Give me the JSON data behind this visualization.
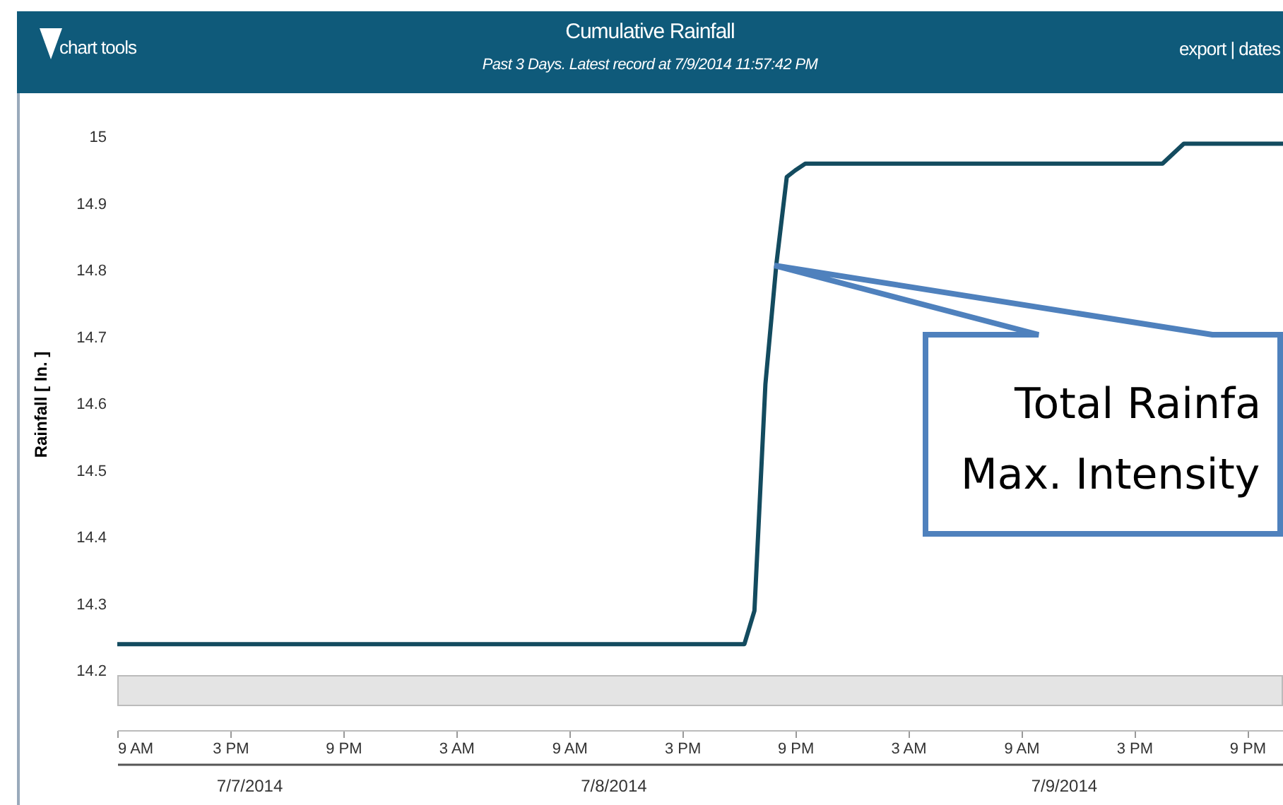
{
  "chart_data": {
    "type": "line",
    "title": "Cumulative Rainfall",
    "subtitle": "Past 3 Days. Latest record at 7/9/2014 11:57:42 PM",
    "ylabel": "Rainfall [ In. ]",
    "annotations": [
      "chart tools",
      "export | dates",
      "Total Rainfa",
      "Max. Intensity"
    ],
    "x": [
      "2014-07-07T09:00",
      "2014-07-08T18:18",
      "2014-07-08T18:50",
      "2014-07-08T19:25",
      "2014-07-08T20:00",
      "2014-07-08T20:33",
      "2014-07-08T21:00",
      "2014-07-08T21:32",
      "2014-07-09T16:30",
      "2014-07-09T17:38",
      "2014-07-09T22:54"
    ],
    "series": [
      {
        "color": "#134b5f",
        "values": [
          14.24,
          14.24,
          14.29,
          14.63,
          14.81,
          14.94,
          14.95,
          14.96,
          14.96,
          14.99,
          14.99
        ]
      }
    ],
    "xlim": [
      "2014-07-07T09:00",
      "2014-07-09T22:54"
    ],
    "xticks": [
      {
        "value": "2014-07-07T09:00",
        "label": "9 AM"
      },
      {
        "value": "2014-07-07T15:00",
        "label": "3 PM"
      },
      {
        "value": "2014-07-07T21:00",
        "label": "9 PM"
      },
      {
        "value": "2014-07-08T03:00",
        "label": "3 AM"
      },
      {
        "value": "2014-07-08T09:00",
        "label": "9 AM"
      },
      {
        "value": "2014-07-08T15:00",
        "label": "3 PM"
      },
      {
        "value": "2014-07-08T21:00",
        "label": "9 PM"
      },
      {
        "value": "2014-07-09T03:00",
        "label": "3 AM"
      },
      {
        "value": "2014-07-09T09:00",
        "label": "9 AM"
      },
      {
        "value": "2014-07-09T15:00",
        "label": "3 PM"
      },
      {
        "value": "2014-07-09T21:00",
        "label": "9 PM"
      }
    ],
    "x2lim": [
      "2014-07-07T09:00",
      "2014-07-09T22:54"
    ],
    "x2ticks": [
      {
        "value": "2014-07-07T16:00",
        "label": "7/7/2014"
      },
      {
        "value": "2014-07-08T11:20",
        "label": "7/8/2014"
      },
      {
        "value": "2014-07-09T11:15",
        "label": "7/9/2014"
      }
    ],
    "ylim": [
      14.2,
      15
    ],
    "yticks": [
      14.2,
      14.3,
      14.4,
      14.5,
      14.6,
      14.7,
      14.8,
      14.9,
      15
    ],
    "grid": false
  }
}
